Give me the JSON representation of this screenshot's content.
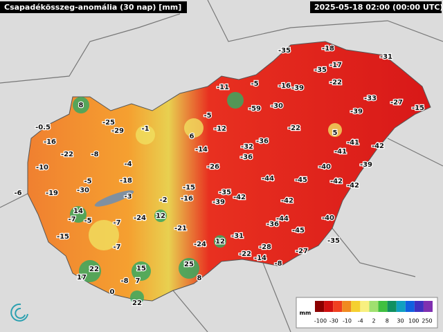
{
  "header": {
    "title": "Csapadékösszeg-anomália (30 nap) [mm]",
    "timestamp": "2025-05-18 02:00 (00:00 UTC)"
  },
  "labels": [
    -35,
    -18,
    -31,
    -35,
    -17,
    -22,
    -11,
    -5,
    -16,
    -39,
    8,
    -59,
    -30,
    -33,
    -27,
    -15,
    -39,
    -25,
    -29,
    -1,
    -5,
    -12,
    -22,
    5,
    -0.5,
    6,
    -16,
    -22,
    -8,
    -14,
    -32,
    -36,
    -41,
    -41,
    -42,
    -36,
    -10,
    -4,
    -26,
    -40,
    -39,
    -5,
    -18,
    -44,
    -45,
    -42,
    -42,
    -6,
    -19,
    -30,
    -15,
    -35,
    -42,
    -3,
    -16,
    -2,
    -39,
    -42,
    14,
    -7,
    -5,
    -24,
    12,
    -7,
    -44,
    -36,
    -40,
    -45,
    -21,
    -15,
    -31,
    -24,
    12,
    -35,
    -28,
    -7,
    -22,
    -14,
    -27,
    -8,
    22,
    15,
    25,
    17,
    -8,
    7,
    8,
    0,
    22
  ],
  "legend": {
    "unit": "mm",
    "ticks": [
      -100,
      -30,
      -10,
      -4,
      2,
      8,
      30,
      100,
      250
    ]
  }
}
